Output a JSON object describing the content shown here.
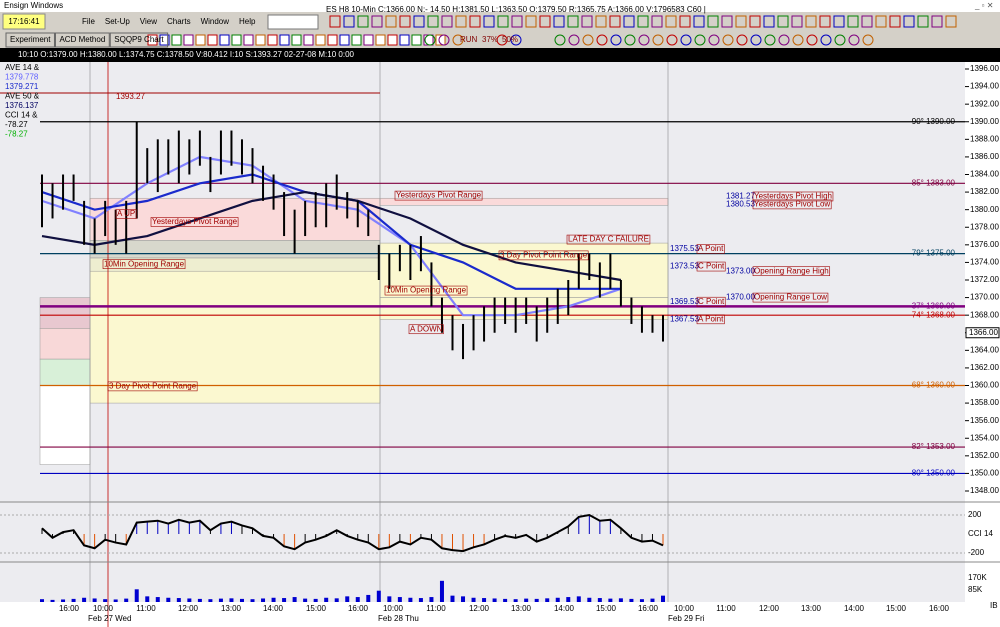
{
  "window": {
    "title": "Ensign Windows",
    "clock": "17:16:41",
    "menu": [
      "File",
      "Set-Up",
      "View",
      "Charts",
      "Window",
      "Help"
    ],
    "chart_header": "ES H8 10-Min C:1366.00 N:- 14.50 H:1381.50 L:1363.50 O:1379.50 R:1365.75 A:1366.00 V:1796583 C60 |",
    "tabs": [
      "Experiment",
      "ACD Method",
      "SQQP9 Chart"
    ],
    "toolbar_text": [
      "RUN",
      "37%",
      "50%"
    ],
    "info_bar": "10:10  O:1379.00  H:1380.00  L:1374.75  C:1378.50  V:80.412  I:10  S:1393.27  02-27-08  M:10  0:00",
    "corner": "IB"
  },
  "chart_data": {
    "type": "ohlc",
    "legend": [
      {
        "text": "AVE 14 &",
        "color": "#000"
      },
      {
        "text": "1379.778",
        "color": "#6060ff"
      },
      {
        "text": "1379.271",
        "color": "#1a2acc"
      },
      {
        "text": "AVE 50 &",
        "color": "#000"
      },
      {
        "text": "1376.137",
        "color": "#000060"
      },
      {
        "text": "CCI 14 &",
        "color": "#000"
      },
      {
        "text": "-78.27",
        "color": "#000"
      },
      {
        "text": "-78.27",
        "color": "#00b000"
      }
    ],
    "ylim": [
      1348,
      1396
    ],
    "yticks": [
      {
        "value": 1348,
        "label": "1348.00"
      },
      {
        "value": 1350,
        "label": "1350.00"
      },
      {
        "value": 1352,
        "label": "1352.00"
      },
      {
        "value": 1354,
        "label": "1354.00"
      },
      {
        "value": 1356,
        "label": "1356.00"
      },
      {
        "value": 1358,
        "label": "1358.00"
      },
      {
        "value": 1360,
        "label": "1360.00"
      },
      {
        "value": 1362,
        "label": "1362.00"
      },
      {
        "value": 1364,
        "label": "1364.00"
      },
      {
        "value": 1366,
        "label": "1366.00"
      },
      {
        "value": 1368,
        "label": "1368.00"
      },
      {
        "value": 1370,
        "label": "1370.00"
      },
      {
        "value": 1372,
        "label": "1372.00"
      },
      {
        "value": 1374,
        "label": "1374.00"
      },
      {
        "value": 1376,
        "label": "1376.00"
      },
      {
        "value": 1378,
        "label": "1378.00"
      },
      {
        "value": 1380,
        "label": "1380.00"
      },
      {
        "value": 1382,
        "label": "1382.00"
      },
      {
        "value": 1384,
        "label": "1384.00"
      },
      {
        "value": 1386,
        "label": "1386.00"
      },
      {
        "value": 1388,
        "label": "1388.00"
      },
      {
        "value": 1390,
        "label": "1390.00"
      },
      {
        "value": 1392,
        "label": "1392.00"
      },
      {
        "value": 1394,
        "label": "1394.00"
      },
      {
        "value": 1396,
        "label": "1396.00"
      }
    ],
    "last_price": {
      "value": 1366,
      "label": "1366.00"
    },
    "levels": [
      {
        "label": "90° 1390.00",
        "value": 1390,
        "color": "#000000"
      },
      {
        "label": "85° 1383.00",
        "value": 1383,
        "color": "#800040"
      },
      {
        "label": "79° 1375.00",
        "value": 1375,
        "color": "#004060"
      },
      {
        "label": "37° 1369.00",
        "value": 1369,
        "color": "#800080"
      },
      {
        "label": "74° 1368.00",
        "value": 1368,
        "color": "#c00000"
      },
      {
        "label": "68° 1360.00",
        "value": 1360,
        "color": "#d06000"
      },
      {
        "label": "82° 1353.00",
        "value": 1353,
        "color": "#800040"
      },
      {
        "label": "80° 1350.00",
        "value": 1350,
        "color": "#0000c0"
      }
    ],
    "prior_high": {
      "value": 1393.27,
      "label": "1393.27"
    },
    "annotations": [
      "Yesterdays Pivot Range",
      "A UP",
      "Yesterdays Pivot Range",
      "10Min Opening Range",
      "3 Day Pivot Point Range",
      "LATE DAY C FAILURE",
      "3 Day Pivot Point Range",
      "10Min Opening Range",
      "A DOWN",
      "1375.53",
      "A Point",
      "1373.53",
      "C Point",
      "1373.00",
      "Opening Range High",
      "1370.00",
      "Opening Range Low",
      "1369.53",
      "C Point",
      "1367.53",
      "A Point",
      "1381.27",
      "Yesterdays Pivot High",
      "1380.53",
      "Yesterdays Pivot Low"
    ],
    "bars": [
      [
        1378,
        1384
      ],
      [
        1379,
        1383
      ],
      [
        1380,
        1384
      ],
      [
        1381,
        1384
      ],
      [
        1376,
        1381
      ],
      [
        1375,
        1379
      ],
      [
        1377,
        1381
      ],
      [
        1376,
        1380
      ],
      [
        1375,
        1381
      ],
      [
        1379,
        1390
      ],
      [
        1383,
        1387
      ],
      [
        1382,
        1388
      ],
      [
        1384,
        1388
      ],
      [
        1383,
        1389
      ],
      [
        1384,
        1388
      ],
      [
        1385,
        1389
      ],
      [
        1382,
        1386
      ],
      [
        1384,
        1389
      ],
      [
        1385,
        1389
      ],
      [
        1384,
        1388
      ],
      [
        1383,
        1387
      ],
      [
        1381,
        1385
      ],
      [
        1380,
        1384
      ],
      [
        1377,
        1382
      ],
      [
        1375,
        1380
      ],
      [
        1377,
        1381
      ],
      [
        1378,
        1382
      ],
      [
        1378,
        1383
      ],
      [
        1380,
        1384
      ],
      [
        1379,
        1382
      ],
      [
        1378,
        1381
      ],
      [
        1377,
        1380
      ],
      [
        1372,
        1376
      ],
      [
        1371,
        1375
      ],
      [
        1373,
        1376
      ],
      [
        1372,
        1376
      ],
      [
        1373,
        1377
      ],
      [
        1369,
        1374
      ],
      [
        1366,
        1370
      ],
      [
        1364,
        1368
      ],
      [
        1363,
        1367
      ],
      [
        1364,
        1368
      ],
      [
        1365,
        1369
      ],
      [
        1366,
        1370
      ],
      [
        1367,
        1370
      ],
      [
        1366,
        1370
      ],
      [
        1367,
        1370
      ],
      [
        1365,
        1369
      ],
      [
        1366,
        1370
      ],
      [
        1367,
        1371
      ],
      [
        1368,
        1372
      ],
      [
        1371,
        1375
      ],
      [
        1372,
        1375
      ],
      [
        1370,
        1374
      ],
      [
        1371,
        1375
      ],
      [
        1369,
        1372
      ],
      [
        1367,
        1370
      ],
      [
        1366,
        1369
      ],
      [
        1366,
        1368
      ],
      [
        1365,
        1368
      ]
    ],
    "averages": [
      {
        "color": "#8080ff",
        "values": [
          1381,
          1379,
          1383,
          1386,
          1385,
          1381,
          1380,
          1376,
          1368,
          1368,
          1369,
          1371
        ]
      },
      {
        "color": "#1a2acc",
        "values": [
          1382,
          1380,
          1381,
          1383,
          1384,
          1382,
          1381,
          1376,
          1374,
          1371,
          1371,
          1371
        ]
      },
      {
        "color": "#101040",
        "values": [
          1377,
          1376,
          1377,
          1379,
          1381,
          1382,
          1381,
          1379,
          1376,
          1374,
          1373,
          1372
        ]
      }
    ],
    "cci": {
      "label": "CCI 14",
      "yticks": [
        {
          "value": 200,
          "label": "200"
        },
        {
          "value": -200,
          "label": "-200"
        }
      ],
      "values": [
        60,
        -40,
        20,
        40,
        -120,
        -150,
        -60,
        -90,
        -110,
        120,
        130,
        140,
        110,
        150,
        120,
        140,
        40,
        110,
        130,
        90,
        60,
        -20,
        -40,
        -130,
        -160,
        -90,
        -60,
        -20,
        40,
        -20,
        -60,
        -90,
        -160,
        -140,
        -80,
        -110,
        -40,
        -60,
        -150,
        -170,
        -180,
        -140,
        -110,
        -60,
        -20,
        -40,
        -10,
        -80,
        -40,
        20,
        80,
        180,
        200,
        140,
        150,
        60,
        -40,
        -80,
        -70,
        -120
      ]
    },
    "volume": {
      "yticks": [
        {
          "value": 170,
          "label": "170K"
        },
        {
          "value": 85,
          "label": "85K"
        }
      ],
      "values": [
        20,
        15,
        18,
        22,
        30,
        25,
        20,
        18,
        24,
        90,
        40,
        35,
        30,
        28,
        25,
        22,
        20,
        24,
        26,
        22,
        20,
        25,
        30,
        28,
        35,
        24,
        22,
        30,
        26,
        40,
        35,
        50,
        80,
        40,
        35,
        30,
        28,
        35,
        150,
        45,
        40,
        30,
        28,
        25,
        22,
        20,
        24,
        22,
        26,
        30,
        35,
        40,
        30,
        28,
        24,
        26,
        22,
        20,
        24,
        45
      ]
    },
    "time_labels": [
      "16:00",
      "10:00",
      "11:00",
      "12:00",
      "13:00",
      "14:00",
      "15:00",
      "16:00",
      "10:00",
      "11:00",
      "12:00",
      "13:00",
      "14:00",
      "15:00",
      "16:00",
      "10:00",
      "11:00",
      "12:00",
      "13:00",
      "14:00",
      "15:00",
      "16:00"
    ],
    "dates": [
      "Feb 27 Wed",
      "Feb 28 Thu",
      "Feb 29 Fri"
    ]
  }
}
